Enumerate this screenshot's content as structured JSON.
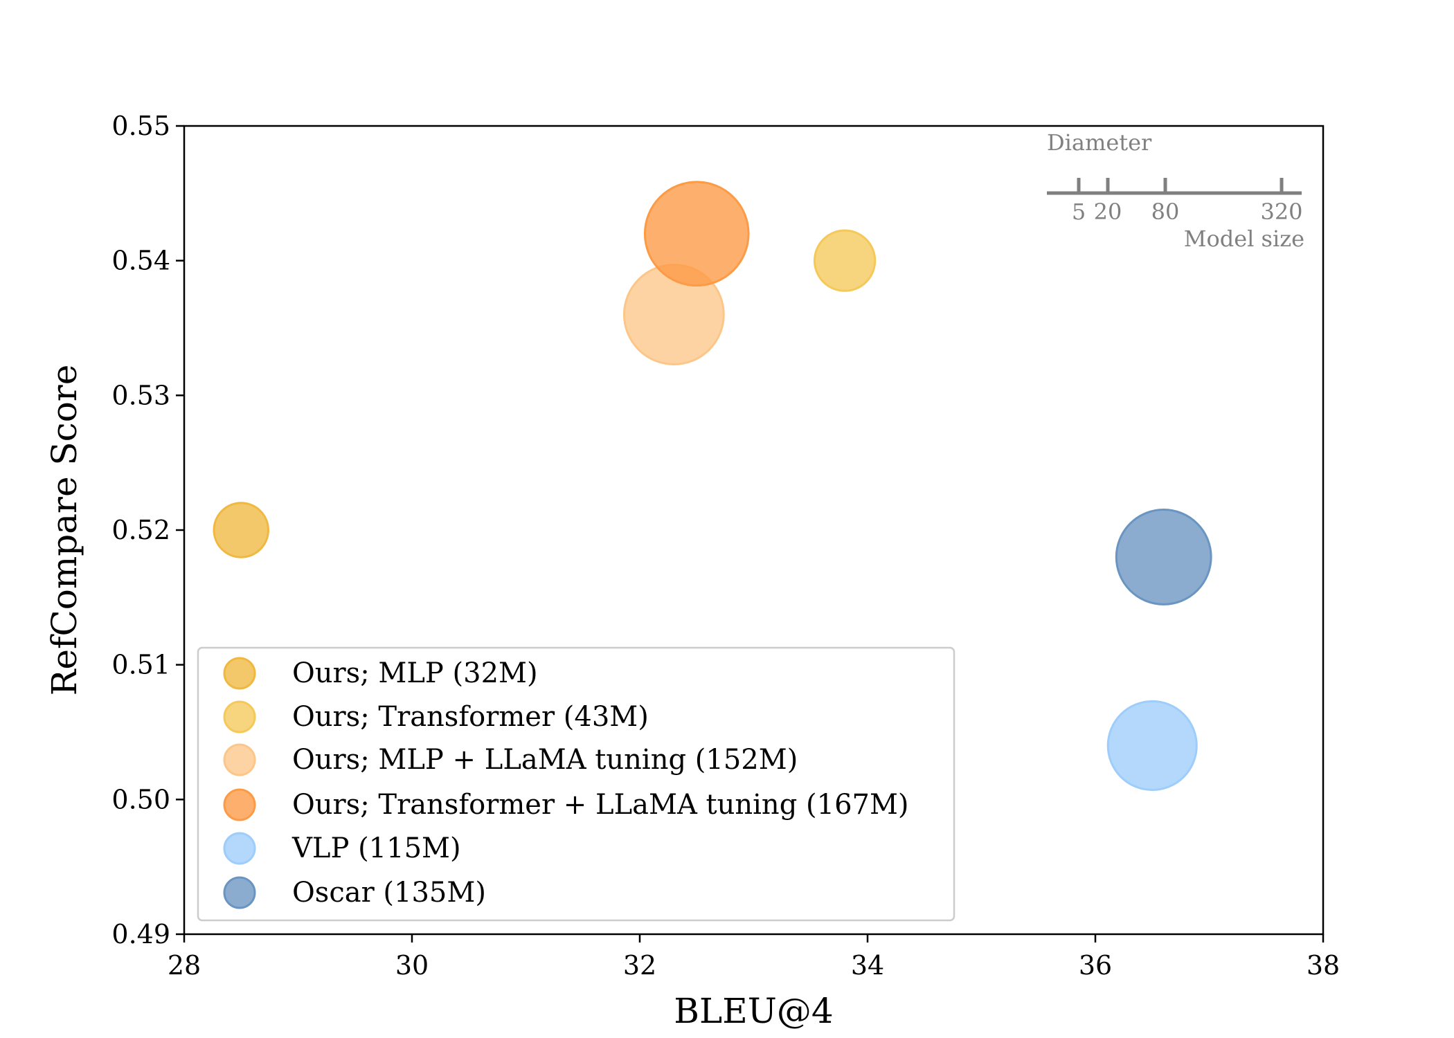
{
  "chart_data": {
    "type": "scatter",
    "title": "",
    "xlabel": "BLEU@4",
    "ylabel": "RefCompare Score",
    "xlim": [
      28,
      38
    ],
    "ylim": [
      0.49,
      0.55
    ],
    "x_ticks": [
      {
        "value": 28,
        "label": "28"
      },
      {
        "value": 30,
        "label": "30"
      },
      {
        "value": 32,
        "label": "32"
      },
      {
        "value": 34,
        "label": "34"
      },
      {
        "value": 36,
        "label": "36"
      },
      {
        "value": 38,
        "label": "38"
      }
    ],
    "y_ticks": [
      {
        "value": 0.49,
        "label": "0.49"
      },
      {
        "value": 0.5,
        "label": "0.50"
      },
      {
        "value": 0.51,
        "label": "0.51"
      },
      {
        "value": 0.52,
        "label": "0.52"
      },
      {
        "value": 0.53,
        "label": "0.53"
      },
      {
        "value": 0.54,
        "label": "0.54"
      },
      {
        "value": 0.55,
        "label": "0.55"
      }
    ],
    "grid": false,
    "legend_position": "lower-left",
    "series": [
      {
        "name": "Ours; MLP (32M)",
        "x": 28.5,
        "y": 0.52,
        "size_m": 32,
        "color": "#f0b840"
      },
      {
        "name": "Ours; Transformer (43M)",
        "x": 33.8,
        "y": 0.54,
        "size_m": 43,
        "color": "#f5c85a"
      },
      {
        "name": "Ours; MLP + LLaMA tuning (152M)",
        "x": 32.3,
        "y": 0.536,
        "size_m": 152,
        "color": "#fdc689"
      },
      {
        "name": "Ours; Transformer + LLaMA tuning (167M)",
        "x": 32.5,
        "y": 0.542,
        "size_m": 167,
        "color": "#fd9a45"
      },
      {
        "name": "VLP (115M)",
        "x": 36.5,
        "y": 0.504,
        "size_m": 115,
        "color": "#9ecdfb"
      },
      {
        "name": "Oscar (135M)",
        "x": 36.6,
        "y": 0.518,
        "size_m": 135,
        "color": "#6a95c2"
      }
    ],
    "size_scale": {
      "title": "Diameter",
      "label": "Model size",
      "ticks": [
        {
          "value": 5,
          "label": "5"
        },
        {
          "value": 20,
          "label": "20"
        },
        {
          "value": 80,
          "label": "80"
        },
        {
          "value": 320,
          "label": "320"
        }
      ]
    }
  }
}
